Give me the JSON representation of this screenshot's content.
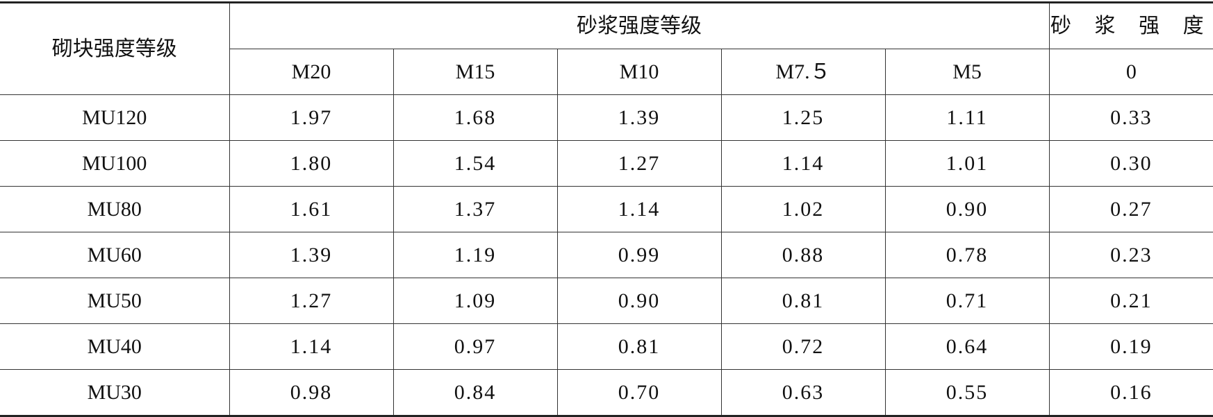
{
  "table": {
    "row_header": "砌块强度等级",
    "group_header": "砂浆强度等级",
    "last_header": "砂 浆 强 度",
    "columns": [
      "M20",
      "M15",
      "M10",
      "M7.５",
      "M5",
      "0"
    ],
    "rows": [
      {
        "label": "MU120",
        "values": [
          "1.97",
          "1.68",
          "1.39",
          "1.25",
          "1.11",
          "0.33"
        ]
      },
      {
        "label": "MU100",
        "values": [
          "1.80",
          "1.54",
          "1.27",
          "1.14",
          "1.01",
          "0.30"
        ]
      },
      {
        "label": "MU80",
        "values": [
          "1.61",
          "1.37",
          "1.14",
          "1.02",
          "0.90",
          "0.27"
        ]
      },
      {
        "label": "MU60",
        "values": [
          "1.39",
          "1.19",
          "0.99",
          "0.88",
          "0.78",
          "0.23"
        ]
      },
      {
        "label": "MU50",
        "values": [
          "1.27",
          "1.09",
          "0.90",
          "0.81",
          "0.71",
          "0.21"
        ]
      },
      {
        "label": "MU40",
        "values": [
          "1.14",
          "0.97",
          "0.81",
          "0.72",
          "0.64",
          "0.19"
        ]
      },
      {
        "label": "MU30",
        "values": [
          "0.98",
          "0.84",
          "0.70",
          "0.63",
          "0.55",
          "0.16"
        ]
      }
    ]
  }
}
